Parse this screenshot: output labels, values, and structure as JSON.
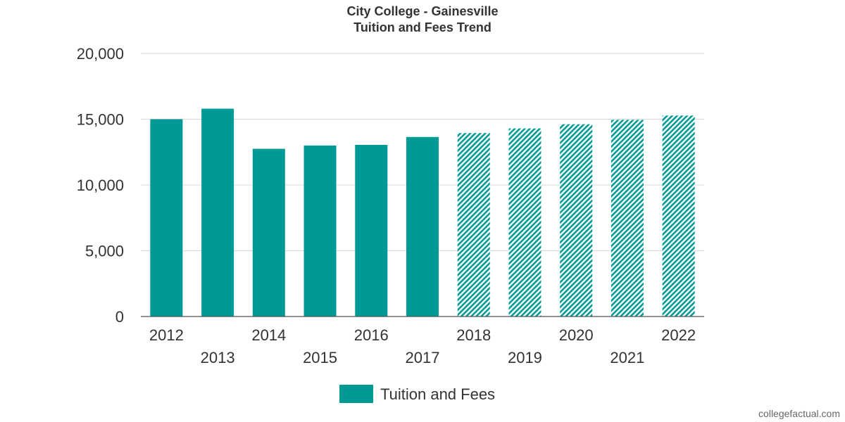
{
  "chart_data": {
    "type": "bar",
    "title": "City College - Gainesville",
    "subtitle": "Tuition and Fees Trend",
    "categories": [
      "2012",
      "2013",
      "2014",
      "2015",
      "2016",
      "2017",
      "2018",
      "2019",
      "2020",
      "2021",
      "2022"
    ],
    "series": [
      {
        "name": "Tuition and Fees",
        "values": [
          15000,
          15800,
          12750,
          13000,
          13050,
          13650,
          13950,
          14300,
          14620,
          14950,
          15280
        ],
        "projected": [
          false,
          false,
          false,
          false,
          false,
          false,
          true,
          true,
          true,
          true,
          true
        ]
      }
    ],
    "ylim": [
      0,
      20000
    ],
    "yticks": [
      0,
      5000,
      10000,
      15000,
      20000
    ],
    "ytick_labels": [
      "0",
      "5,000",
      "10,000",
      "15,000",
      "20,000"
    ],
    "xlabel": "",
    "ylabel": "",
    "grid": true,
    "legend_position": "bottom-center",
    "color": "#009a96"
  },
  "credit": "collegefactual.com"
}
